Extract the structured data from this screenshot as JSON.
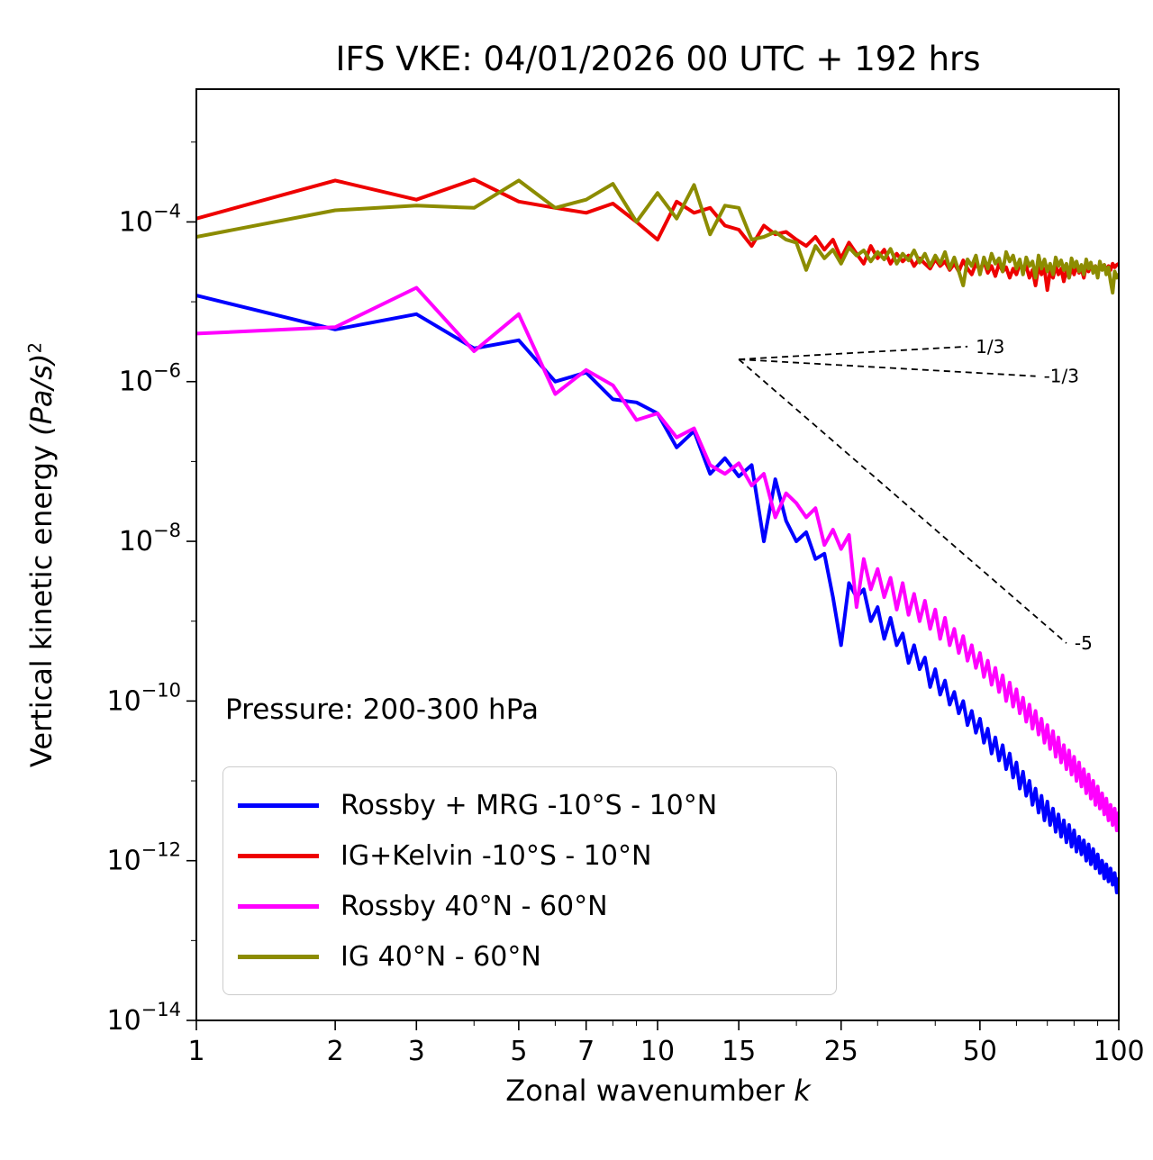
{
  "title": "IFS VKE: 04/01/2026 00 UTC + 192 hrs",
  "annotation": "Pressure: 200-300 hPa",
  "axes": {
    "xlabel_prefix": "Zonal wavenumber ",
    "xlabel_var": "k",
    "ylabel_prefix": "Vertical kinetic energy ",
    "ylabel_math": "(Pa/s)",
    "ylabel_sup": "2"
  },
  "chart_data": {
    "type": "line",
    "title": "IFS VKE: 04/01/2026 00 UTC + 192 hrs",
    "xlabel": "Zonal wavenumber k",
    "ylabel": "Vertical kinetic energy (Pa/s)^2",
    "xscale": "log",
    "yscale": "log",
    "grid": false,
    "legend_position": "lower left",
    "xlim": [
      1,
      100
    ],
    "ylim": [
      1e-14,
      0.0046
    ],
    "x_ticks": [
      1,
      2,
      3,
      5,
      7,
      10,
      15,
      25,
      50,
      100
    ],
    "y_tick_exponents": [
      -4,
      -6,
      -8,
      -10,
      -12,
      -14
    ],
    "x": [
      1,
      2,
      3,
      4,
      5,
      6,
      7,
      8,
      9,
      10,
      11,
      12,
      13,
      14,
      15,
      16,
      17,
      18,
      19,
      20,
      21,
      22,
      23,
      24,
      25,
      26,
      27,
      28,
      29,
      30,
      31,
      32,
      33,
      34,
      35,
      36,
      37,
      38,
      39,
      40,
      41,
      42,
      43,
      44,
      45,
      46,
      47,
      48,
      49,
      50,
      51,
      52,
      53,
      54,
      55,
      56,
      57,
      58,
      59,
      60,
      61,
      62,
      63,
      64,
      65,
      66,
      67,
      68,
      69,
      70,
      71,
      72,
      73,
      74,
      75,
      76,
      77,
      78,
      79,
      80,
      81,
      82,
      83,
      84,
      85,
      86,
      87,
      88,
      89,
      90,
      91,
      92,
      93,
      94,
      95,
      96,
      97,
      98,
      99,
      100
    ],
    "series": [
      {
        "name": "Rossby + MRG -10°S - 10°N",
        "color": "#0000ff",
        "values": [
          1.2e-05,
          4.5e-06,
          7e-06,
          2.6e-06,
          3.3e-06,
          1e-06,
          1.3e-06,
          6e-07,
          5.5e-07,
          4e-07,
          1.5e-07,
          2.4e-07,
          7e-08,
          1.1e-07,
          6.5e-08,
          9e-08,
          1e-08,
          6e-08,
          1.8e-08,
          1e-08,
          1.3e-08,
          6e-09,
          7e-09,
          2e-09,
          5e-10,
          3e-09,
          2e-09,
          2.5e-09,
          1e-09,
          1.5e-09,
          6e-10,
          1.1e-09,
          5e-10,
          7e-10,
          3e-10,
          5e-10,
          2.5e-10,
          3.5e-10,
          1.5e-10,
          2.5e-10,
          1.2e-10,
          1.8e-10,
          9e-11,
          1.3e-10,
          7e-11,
          1e-10,
          5e-11,
          7.5e-11,
          4e-11,
          6e-11,
          3e-11,
          4.5e-11,
          2.2e-11,
          3.5e-11,
          1.8e-11,
          2.8e-11,
          1.4e-11,
          2.2e-11,
          1.1e-11,
          1.7e-11,
          8e-12,
          1.3e-11,
          6.5e-12,
          1e-11,
          5e-12,
          8e-12,
          4e-12,
          6.5e-12,
          3.2e-12,
          5.5e-12,
          2.8e-12,
          4.5e-12,
          2.3e-12,
          3.8e-12,
          2e-12,
          3.2e-12,
          1.7e-12,
          2.8e-12,
          1.5e-12,
          2.4e-12,
          1.3e-12,
          2e-12,
          1.2e-12,
          1.8e-12,
          1e-12,
          1.6e-12,
          9e-13,
          1.4e-12,
          8e-13,
          1.2e-12,
          7e-13,
          1e-12,
          6e-13,
          9e-13,
          5.5e-13,
          8e-13,
          5e-13,
          7e-13,
          4e-13,
          6e-13
        ]
      },
      {
        "name": "IG+Kelvin -10°S - 10°N",
        "color": "#ee0000",
        "values": [
          0.00011,
          0.00033,
          0.00019,
          0.00034,
          0.00018,
          0.00015,
          0.00013,
          0.00017,
          0.0001,
          6e-05,
          0.00018,
          0.00013,
          0.00015,
          9e-05,
          8e-05,
          5e-05,
          9e-05,
          7e-05,
          7.5e-05,
          6e-05,
          5e-05,
          6.5e-05,
          4.5e-05,
          6e-05,
          3.5e-05,
          5.5e-05,
          4e-05,
          3e-05,
          5e-05,
          3.5e-05,
          4.5e-05,
          3e-05,
          4e-05,
          3.2e-05,
          3.8e-05,
          2.8e-05,
          3.5e-05,
          3e-05,
          2.6e-05,
          3.4e-05,
          2.8e-05,
          3.2e-05,
          2.5e-05,
          3e-05,
          2.4e-05,
          3.3e-05,
          2.6e-05,
          2.2e-05,
          3e-05,
          2.5e-05,
          3.2e-05,
          2.3e-05,
          2.8e-05,
          2.1e-05,
          3e-05,
          2.4e-05,
          2.7e-05,
          2e-05,
          2.6e-05,
          2.2e-05,
          3e-05,
          2.4e-05,
          2.8e-05,
          2e-05,
          2.5e-05,
          1.6e-05,
          2.8e-05,
          2.2e-05,
          2.6e-05,
          1.4e-05,
          2.4e-05,
          2e-05,
          2.8e-05,
          2.2e-05,
          2.6e-05,
          1.8e-05,
          2.5e-05,
          2e-05,
          2.7e-05,
          2.2e-05,
          2.9e-05,
          2.3e-05,
          2.6e-05,
          2e-05,
          2.8e-05,
          2.4e-05,
          3e-05,
          2.5e-05,
          2.8e-05,
          2.2e-05,
          3e-05,
          2.6e-05,
          2.9e-05,
          2.4e-05,
          2.8e-05,
          2.5e-05,
          3e-05,
          2.7e-05,
          2.9e-05,
          3e-05
        ]
      },
      {
        "name": "Rossby 40°N - 60°N",
        "color": "#ff00ff",
        "values": [
          4e-06,
          4.8e-06,
          1.5e-05,
          2.4e-06,
          7e-06,
          7e-07,
          1.4e-06,
          9e-07,
          3.3e-07,
          4e-07,
          2e-07,
          2.6e-07,
          9e-08,
          7e-08,
          9.5e-08,
          5e-08,
          7e-08,
          2e-08,
          4e-08,
          3e-08,
          2e-08,
          2.6e-08,
          9e-09,
          1.4e-08,
          8e-09,
          1.2e-08,
          1.5e-09,
          6e-09,
          2.5e-09,
          4.5e-09,
          2e-09,
          3.5e-09,
          1.4e-09,
          3e-09,
          1.2e-09,
          2.2e-09,
          1e-09,
          1.8e-09,
          8e-10,
          1.4e-09,
          6e-10,
          1.1e-09,
          5e-10,
          8e-10,
          4e-10,
          6.5e-10,
          3.2e-10,
          5e-10,
          2.6e-10,
          4e-10,
          2e-10,
          3.2e-10,
          1.6e-10,
          2.6e-10,
          1.3e-10,
          2.1e-10,
          1e-10,
          1.7e-10,
          8.5e-11,
          1.4e-10,
          7e-11,
          1.1e-10,
          5.5e-11,
          9e-11,
          4.5e-11,
          7.5e-11,
          3.8e-11,
          6e-11,
          3e-11,
          5e-11,
          2.5e-11,
          4.2e-11,
          2e-11,
          3.5e-11,
          1.7e-11,
          2.8e-11,
          1.4e-11,
          2.4e-11,
          1.2e-11,
          2e-11,
          1e-11,
          1.7e-11,
          8.5e-12,
          1.4e-11,
          7e-12,
          1.2e-11,
          6e-12,
          1e-11,
          5e-12,
          8.5e-12,
          4.5e-12,
          7e-12,
          3.8e-12,
          6e-12,
          3.2e-12,
          5e-12,
          2.8e-12,
          4.5e-12,
          2.4e-12,
          4e-12
        ]
      },
      {
        "name": "IG 40°N - 60°N",
        "color": "#8c8c00",
        "values": [
          6.5e-05,
          0.00014,
          0.00016,
          0.00015,
          0.00033,
          0.00015,
          0.00019,
          0.0003,
          0.0001,
          0.00023,
          0.00011,
          0.00029,
          7e-05,
          0.00016,
          0.00015,
          6e-05,
          6.5e-05,
          7.5e-05,
          6e-05,
          5.5e-05,
          2.5e-05,
          5e-05,
          3.5e-05,
          4.5e-05,
          3e-05,
          4.8e-05,
          3.8e-05,
          4.4e-05,
          3.2e-05,
          4.2e-05,
          3.4e-05,
          4.6e-05,
          3e-05,
          4e-05,
          3.3e-05,
          4.4e-05,
          3.1e-05,
          4e-05,
          2.8e-05,
          3.8e-05,
          3e-05,
          4.2e-05,
          2.6e-05,
          3.6e-05,
          2.4e-05,
          1.6e-05,
          3.4e-05,
          2.8e-05,
          3.8e-05,
          2.2e-05,
          3.6e-05,
          2.6e-05,
          4e-05,
          3e-05,
          3.5e-05,
          2.4e-05,
          4.2e-05,
          3.2e-05,
          3.8e-05,
          2.6e-05,
          3.4e-05,
          2.2e-05,
          3.6e-05,
          2.8e-05,
          3.2e-05,
          2e-05,
          3.8e-05,
          2.6e-05,
          3.4e-05,
          2.4e-05,
          3e-05,
          2.2e-05,
          3.6e-05,
          2.8e-05,
          3.3e-05,
          2.5e-05,
          3e-05,
          2e-05,
          3.5e-05,
          2.7e-05,
          3.2e-05,
          2.4e-05,
          2.9e-05,
          2.2e-05,
          3.4e-05,
          2.6e-05,
          3.1e-05,
          2.3e-05,
          2.8e-05,
          2e-05,
          3.2e-05,
          2.5e-05,
          2.9e-05,
          2.2e-05,
          2.7e-05,
          1.8e-05,
          1.3e-05,
          2.4e-05,
          2e-05,
          2.2e-05
        ]
      }
    ],
    "ref_lines": [
      {
        "label": "1/3",
        "x": [
          15,
          47
        ],
        "y": [
          1.9e-06,
          2.75e-06
        ]
      },
      {
        "label": "-1/3",
        "x": [
          15,
          66
        ],
        "y": [
          1.9e-06,
          1.17e-06
        ]
      },
      {
        "label": "-5",
        "x": [
          15,
          77
        ],
        "y": [
          1.9e-06,
          5.3e-10
        ]
      }
    ]
  }
}
